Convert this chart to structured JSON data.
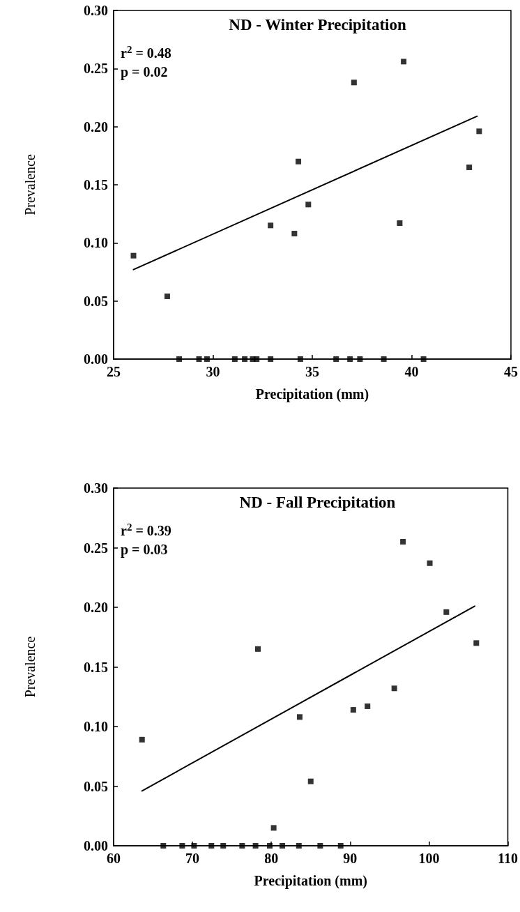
{
  "chart_data": [
    {
      "type": "scatter",
      "title": "ND - Winter Precipitation",
      "xlabel": "Precipitation (mm)",
      "ylabel": "Prevalence",
      "annotations": [
        "r$^{2}$ = 0.48",
        "p = 0.02"
      ],
      "xlim": [
        25,
        45
      ],
      "xticks": [
        25,
        30,
        35,
        40,
        45
      ],
      "ylim": [
        0,
        0.3
      ],
      "yticks": [
        {
          "value": 0,
          "label": "0.00"
        },
        0.05,
        {
          "value": 0.1,
          "label": "0.10"
        },
        0.15,
        {
          "value": 0.2,
          "label": "0.20"
        },
        0.25,
        {
          "value": 0.3,
          "label": "0.30"
        }
      ],
      "series": [
        {
          "marker": "square",
          "color": "#000000",
          "x": [
            26.0,
            27.7,
            32.9,
            34.1,
            34.3,
            34.8,
            37.1,
            39.4,
            39.6,
            42.9,
            43.4,
            28.3,
            29.3,
            29.7,
            31.1,
            31.6,
            32.0,
            32.2,
            32.9,
            34.4,
            36.2,
            36.9,
            37.4,
            38.6,
            40.6
          ],
          "values": [
            0.089,
            0.054,
            0.115,
            0.108,
            0.17,
            0.133,
            0.238,
            0.117,
            0.256,
            0.165,
            0.196,
            0,
            0,
            0,
            0,
            0,
            0,
            0,
            0,
            0,
            0,
            0,
            0,
            0,
            0
          ]
        },
        {
          "type": "line",
          "marker": "none",
          "line_style": "solid",
          "color": "#000000",
          "x": [
            26.0,
            43.3
          ],
          "values": [
            0.077,
            0.209
          ]
        }
      ]
    },
    {
      "type": "scatter",
      "title": "ND - Fall Precipitation",
      "xlabel": "Precipitation (mm)",
      "ylabel": "Prevalence",
      "annotations": [
        "r$^{2}$ = 0.39",
        "p = 0.03"
      ],
      "xlim": [
        60,
        110
      ],
      "xticks": [
        60,
        70,
        80,
        90,
        100,
        110
      ],
      "ylim": [
        0,
        0.3
      ],
      "yticks": [
        {
          "value": 0,
          "label": "0.00"
        },
        0.05,
        {
          "value": 0.1,
          "label": "0.10"
        },
        0.15,
        {
          "value": 0.2,
          "label": "0.20"
        },
        0.25,
        {
          "value": 0.3,
          "label": "0.30"
        }
      ],
      "series": [
        {
          "marker": "square",
          "color": "#000000",
          "x": [
            63.6,
            78.3,
            80.3,
            83.6,
            85.0,
            90.4,
            92.2,
            95.6,
            96.7,
            100.1,
            102.2,
            106.0,
            66.3,
            68.7,
            70.2,
            72.4,
            73.9,
            76.3,
            78.0,
            79.8,
            81.4,
            83.5,
            86.2,
            88.8
          ],
          "values": [
            0.089,
            0.165,
            0.015,
            0.108,
            0.054,
            0.114,
            0.117,
            0.132,
            0.255,
            0.237,
            0.196,
            0.17,
            0,
            0,
            0,
            0,
            0,
            0,
            0,
            0,
            0,
            0,
            0,
            0
          ]
        },
        {
          "type": "line",
          "marker": "none",
          "line_style": "solid",
          "color": "#000000",
          "x": [
            63.6,
            105.8
          ],
          "values": [
            0.046,
            0.201
          ]
        }
      ]
    }
  ]
}
